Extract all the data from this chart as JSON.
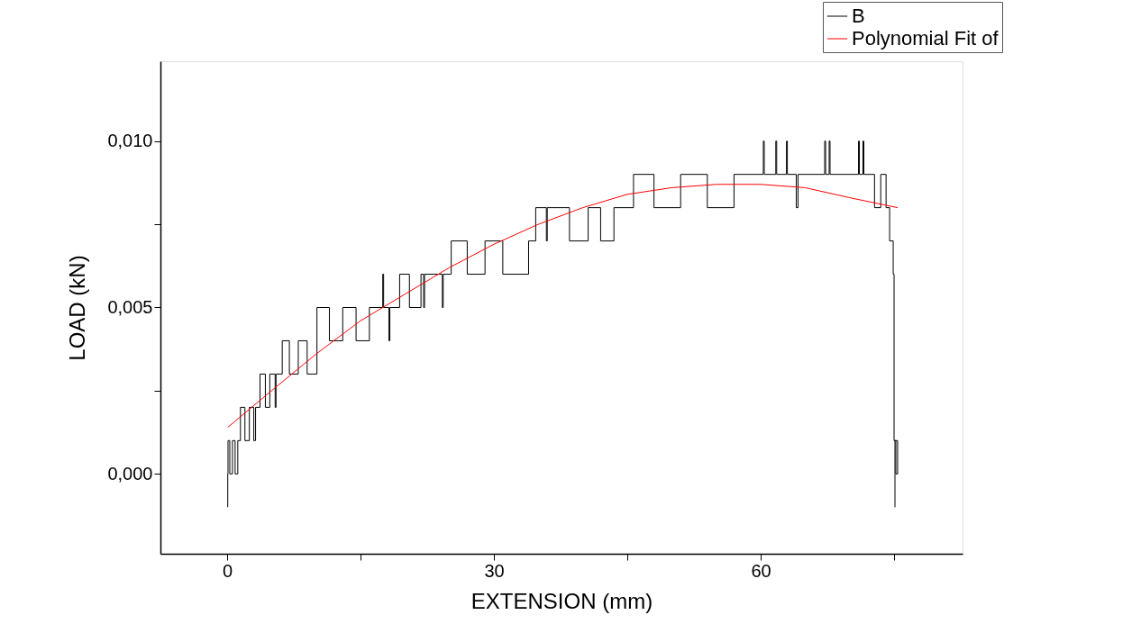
{
  "chart_data": {
    "type": "line",
    "xlabel": "EXTENSION (mm)",
    "ylabel": "LOAD (kN)",
    "xlim": [
      -7.5,
      82.7
    ],
    "ylim": [
      -0.0024,
      0.0124
    ],
    "xticks": [
      0,
      {
        "value": 15,
        "label": null
      },
      30,
      {
        "value": 45,
        "label": null
      },
      60,
      {
        "value": 75,
        "label": null
      }
    ],
    "yticks": [
      {
        "value": 0,
        "label": "0,000"
      },
      {
        "value": 0.0025,
        "label": null
      },
      {
        "value": 0.005,
        "label": "0,005"
      },
      {
        "value": 0.0075,
        "label": null
      },
      {
        "value": 0.01,
        "label": "0,010"
      }
    ],
    "grid": false,
    "legend": "top right",
    "marker": "none",
    "series": [
      {
        "name": "B",
        "color": "#000000",
        "x": [
          0.07,
          0.07,
          0.1,
          0.1,
          0.3,
          0.3,
          0.6,
          0.6,
          0.9,
          0.9,
          1.2,
          1.2,
          1.5,
          1.5,
          2.0,
          2.0,
          2.5,
          2.5,
          3.0,
          3.0,
          3.2,
          3.2,
          3.7,
          3.7,
          4.3,
          4.3,
          4.8,
          4.8,
          5.4,
          5.4,
          5.5,
          5.5,
          6.2,
          6.2,
          7.0,
          7.0,
          8.0,
          8.0,
          9.0,
          9.0,
          10.1,
          10.1,
          11.5,
          11.5,
          13,
          13,
          14.5,
          14.5,
          16,
          16,
          17.5,
          17.5,
          17.6,
          17.6,
          18.2,
          18.2,
          18.3,
          18.3,
          19.4,
          19.4,
          20.5,
          20.5,
          21.8,
          21.8,
          22.1,
          22.1,
          22.2,
          22.2,
          24.2,
          24.2,
          24.3,
          24.3,
          25.2,
          25.2,
          27,
          27,
          29,
          29,
          31,
          31,
          33.9,
          33.9,
          34.7,
          34.7,
          35.9,
          35.9,
          36,
          36,
          38.5,
          38.5,
          40.6,
          40.6,
          42,
          42,
          43.5,
          43.5,
          45.7,
          45.7,
          48,
          48,
          51,
          51,
          54,
          54,
          57,
          57,
          60.3,
          60.3,
          60.4,
          60.4,
          61.7,
          61.7,
          61.8,
          61.8,
          62.9,
          62.9,
          63,
          63,
          64,
          64,
          64.2,
          64.2,
          67.2,
          67.2,
          67.3,
          67.3,
          67.7,
          67.7,
          67.8,
          67.8,
          71,
          71,
          71.1,
          71.1,
          71.5,
          71.5,
          71.6,
          71.6,
          72.8,
          72.8,
          73.5,
          73.5,
          74.1,
          74.1,
          74.5,
          74.5,
          74.9,
          74.9,
          75.0,
          75.0,
          75.2,
          75.2,
          75.4,
          75.4,
          75.1,
          75.1
        ],
        "values": [
          -0.001,
          0,
          0,
          0.001,
          0.001,
          0,
          0,
          0.001,
          0.001,
          0,
          0,
          0.001,
          0.001,
          0.002,
          0.002,
          0.001,
          0.001,
          0.002,
          0.002,
          0.001,
          0.001,
          0.002,
          0.002,
          0.003,
          0.003,
          0.002,
          0.002,
          0.003,
          0.003,
          0.002,
          0.002,
          0.003,
          0.003,
          0.004,
          0.004,
          0.003,
          0.003,
          0.004,
          0.004,
          0.003,
          0.003,
          0.005,
          0.005,
          0.004,
          0.004,
          0.005,
          0.005,
          0.004,
          0.004,
          0.005,
          0.005,
          0.006,
          0.006,
          0.005,
          0.005,
          0.004,
          0.004,
          0.005,
          0.005,
          0.006,
          0.006,
          0.005,
          0.005,
          0.006,
          0.006,
          0.005,
          0.005,
          0.006,
          0.006,
          0.005,
          0.005,
          0.006,
          0.006,
          0.007,
          0.007,
          0.006,
          0.006,
          0.007,
          0.007,
          0.006,
          0.006,
          0.007,
          0.007,
          0.008,
          0.008,
          0.007,
          0.007,
          0.008,
          0.008,
          0.007,
          0.007,
          0.008,
          0.008,
          0.007,
          0.007,
          0.008,
          0.008,
          0.009,
          0.009,
          0.008,
          0.008,
          0.009,
          0.009,
          0.008,
          0.008,
          0.009,
          0.009,
          0.01,
          0.01,
          0.009,
          0.009,
          0.01,
          0.01,
          0.009,
          0.009,
          0.01,
          0.01,
          0.009,
          0.009,
          0.008,
          0.008,
          0.009,
          0.009,
          0.01,
          0.01,
          0.009,
          0.009,
          0.01,
          0.01,
          0.009,
          0.009,
          0.01,
          0.01,
          0.009,
          0.009,
          0.01,
          0.01,
          0.009,
          0.009,
          0.008,
          0.008,
          0.009,
          0.009,
          0.008,
          0.008,
          0.007,
          0.007,
          0.006,
          0.006,
          0.001,
          0.001,
          0,
          0,
          0.001,
          0.001,
          -0.001
        ]
      },
      {
        "name": "Polynomial Fit of",
        "color": "#ff0000",
        "x": [
          0.07,
          5,
          10,
          15,
          20,
          25,
          30,
          35,
          40,
          45,
          50,
          55,
          60,
          65,
          70,
          75.4
        ],
        "values": [
          0.0014,
          0.0025,
          0.0036,
          0.0046,
          0.0054,
          0.0062,
          0.0069,
          0.0075,
          0.008,
          0.0084,
          0.0086,
          0.0087,
          0.0087,
          0.0086,
          0.0083,
          0.008
        ]
      }
    ]
  }
}
